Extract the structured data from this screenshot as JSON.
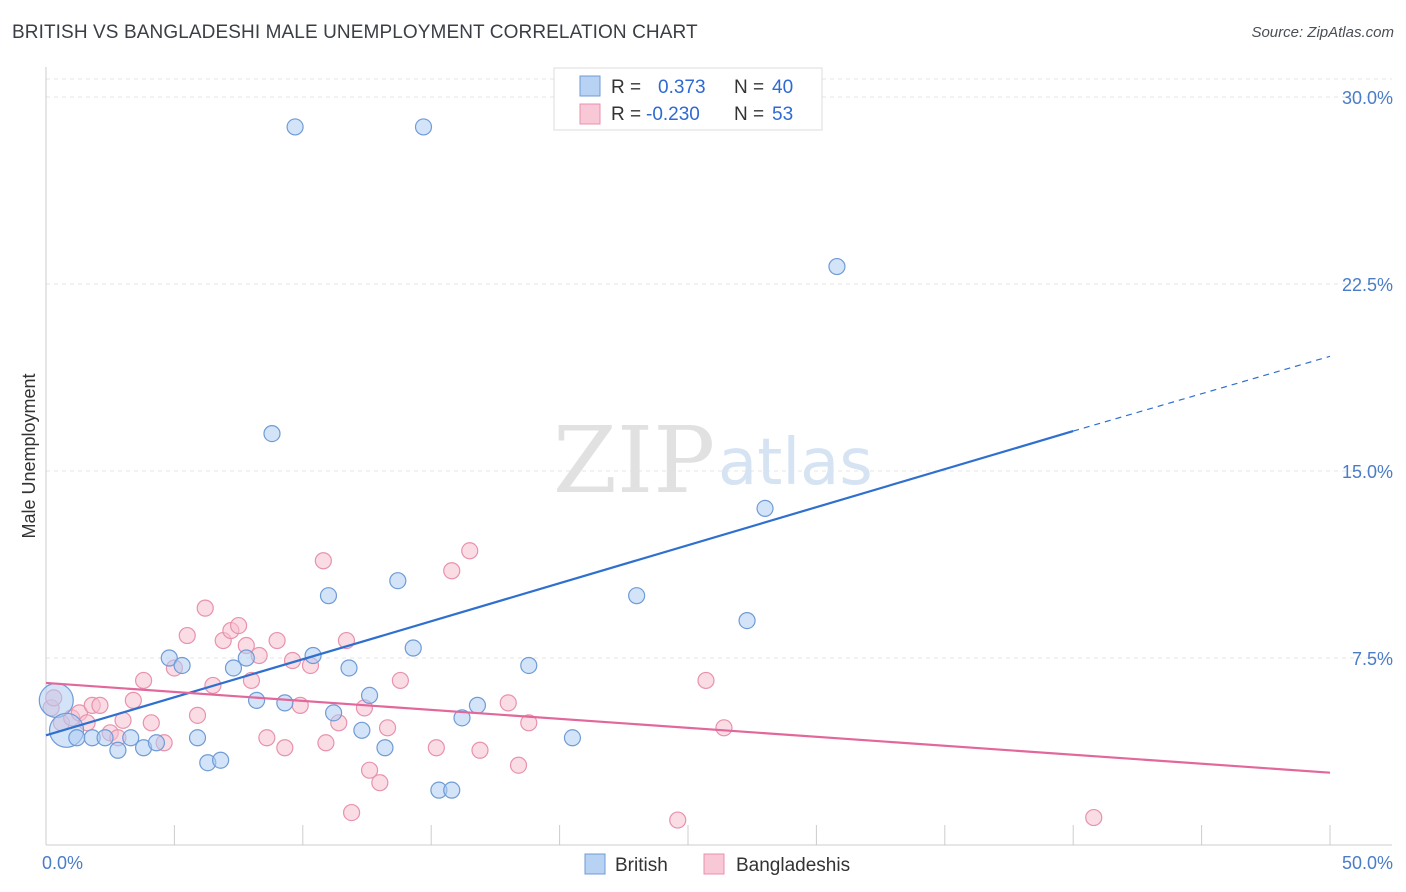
{
  "title": "BRITISH VS BANGLADESHI MALE UNEMPLOYMENT CORRELATION CHART",
  "source": "Source: ZipAtlas.com",
  "watermark": {
    "part1": "ZIP",
    "part2": "atlas"
  },
  "legend": {
    "r_label": "R =",
    "n_label": "N =",
    "rows": [
      {
        "r": "0.373",
        "n": "40"
      },
      {
        "r": "-0.230",
        "n": "53"
      }
    ]
  },
  "colors": {
    "british_fill": "#aeccf2",
    "british_stroke": "#6f9bd6",
    "british_line": "#2f6fce",
    "bangladeshi_fill": "#f6bfd0",
    "bangladeshi_stroke": "#e892ad",
    "bangladeshi_line": "#e2679a",
    "tick_label": "#4a7cc7",
    "grid": "#e4e4e4"
  },
  "chart_data": {
    "type": "scatter",
    "title": "BRITISH VS BANGLADESHI MALE UNEMPLOYMENT CORRELATION CHART",
    "xlabel": "",
    "ylabel": "Male Unemployment",
    "xlim": [
      0,
      50
    ],
    "ylim": [
      0,
      30
    ],
    "x_tick_labels": [
      "0.0%",
      "50.0%"
    ],
    "y_ticks": [
      7.5,
      15.0,
      22.5,
      30.0
    ],
    "y_tick_labels": [
      "7.5%",
      "15.0%",
      "22.5%",
      "30.0%"
    ],
    "grid": "horizontal dashed",
    "legend_position": "top-center",
    "series": [
      {
        "name": "British",
        "r": 0.373,
        "n": 40,
        "trend": {
          "x0": 0.0,
          "y0": 4.4,
          "x1": 40.0,
          "y1": 16.6,
          "dashed_to_x": 50.0,
          "dashed_to_y": 19.6
        },
        "points": [
          [
            0.4,
            5.8,
            "large"
          ],
          [
            0.8,
            4.6,
            "large"
          ],
          [
            1.2,
            4.3
          ],
          [
            1.8,
            4.3
          ],
          [
            2.3,
            4.3
          ],
          [
            2.8,
            3.8
          ],
          [
            3.3,
            4.3
          ],
          [
            3.8,
            3.9
          ],
          [
            4.3,
            4.1
          ],
          [
            4.8,
            7.5
          ],
          [
            5.3,
            7.2
          ],
          [
            5.9,
            4.3
          ],
          [
            6.3,
            3.3
          ],
          [
            6.8,
            3.4
          ],
          [
            7.3,
            7.1
          ],
          [
            7.8,
            7.5
          ],
          [
            8.2,
            5.8
          ],
          [
            8.8,
            16.5
          ],
          [
            9.3,
            5.7
          ],
          [
            9.7,
            28.8
          ],
          [
            10.4,
            7.6
          ],
          [
            11.0,
            10.0
          ],
          [
            11.2,
            5.3
          ],
          [
            11.8,
            7.1
          ],
          [
            12.3,
            4.6
          ],
          [
            12.6,
            6.0
          ],
          [
            13.2,
            3.9
          ],
          [
            13.7,
            10.6
          ],
          [
            14.3,
            7.9
          ],
          [
            15.3,
            2.2
          ],
          [
            15.8,
            2.2
          ],
          [
            16.2,
            5.1
          ],
          [
            16.8,
            5.6
          ],
          [
            18.8,
            7.2
          ],
          [
            14.7,
            28.8
          ],
          [
            20.5,
            4.3
          ],
          [
            23.0,
            10.0
          ],
          [
            27.3,
            9.0
          ],
          [
            28.0,
            13.5
          ],
          [
            30.8,
            23.2
          ]
        ]
      },
      {
        "name": "Bangladeshis",
        "r": -0.23,
        "n": 53,
        "trend": {
          "x0": 0.0,
          "y0": 6.5,
          "x1": 50.0,
          "y1": 2.9
        },
        "points": [
          [
            0.2,
            5.5
          ],
          [
            0.6,
            4.9
          ],
          [
            1.0,
            5.1
          ],
          [
            1.3,
            5.3
          ],
          [
            1.6,
            4.9
          ],
          [
            1.8,
            5.6
          ],
          [
            2.1,
            5.6
          ],
          [
            2.5,
            4.5
          ],
          [
            2.8,
            4.3
          ],
          [
            3.0,
            5.0
          ],
          [
            3.4,
            5.8
          ],
          [
            3.8,
            6.6
          ],
          [
            4.1,
            4.9
          ],
          [
            4.6,
            4.1
          ],
          [
            5.0,
            7.1
          ],
          [
            5.5,
            8.4
          ],
          [
            5.9,
            5.2
          ],
          [
            6.2,
            9.5
          ],
          [
            6.5,
            6.4
          ],
          [
            6.9,
            8.2
          ],
          [
            7.2,
            8.6
          ],
          [
            7.5,
            8.8
          ],
          [
            7.8,
            8.0
          ],
          [
            8.0,
            6.6
          ],
          [
            8.3,
            7.6
          ],
          [
            8.6,
            4.3
          ],
          [
            9.0,
            8.2
          ],
          [
            9.3,
            3.9
          ],
          [
            9.6,
            7.4
          ],
          [
            9.9,
            5.6
          ],
          [
            10.3,
            7.2
          ],
          [
            10.8,
            11.4
          ],
          [
            10.9,
            4.1
          ],
          [
            11.4,
            4.9
          ],
          [
            11.7,
            8.2
          ],
          [
            11.9,
            1.3
          ],
          [
            12.4,
            5.5
          ],
          [
            12.6,
            3.0
          ],
          [
            13.0,
            2.5
          ],
          [
            13.3,
            4.7
          ],
          [
            13.8,
            6.6
          ],
          [
            15.2,
            3.9
          ],
          [
            15.8,
            11.0
          ],
          [
            16.5,
            11.8
          ],
          [
            16.9,
            3.8
          ],
          [
            18.0,
            5.7
          ],
          [
            18.4,
            3.2
          ],
          [
            18.8,
            4.9
          ],
          [
            24.6,
            1.0
          ],
          [
            25.7,
            6.6
          ],
          [
            26.4,
            4.7
          ],
          [
            40.8,
            1.1
          ],
          [
            0.3,
            5.9
          ]
        ]
      }
    ]
  },
  "bottom_legend": [
    "British",
    "Bangladeshis"
  ]
}
